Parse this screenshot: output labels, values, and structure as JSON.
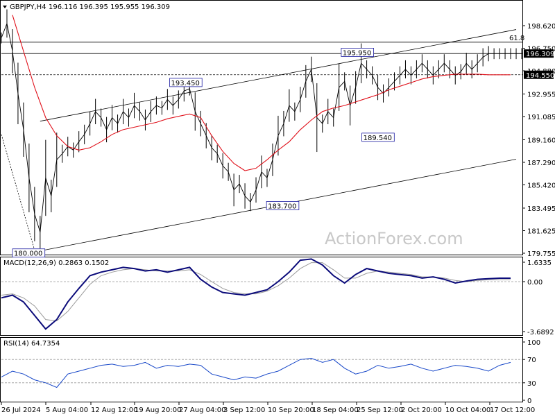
{
  "header": {
    "symbol_timeframe": "GBPJPY,H4",
    "ohlc": "196.116 196.395 195.955 196.309"
  },
  "watermark": "ActionForex.com",
  "colors": {
    "candles": "#000000",
    "ma": "#e0101a",
    "macd": "#0b0b7a",
    "signal": "#9a9a9a",
    "rsi": "#1646c8",
    "channel": "#000000",
    "price_label_bg": "#000000"
  },
  "chart_data": [
    {
      "type": "line",
      "panel": "price",
      "y_axis_ticks": [
        "198.620",
        "196.750",
        "194.880",
        "192.955",
        "191.085",
        "189.160",
        "187.290",
        "185.420",
        "183.495",
        "181.625",
        "179.755"
      ],
      "ylim": [
        179.755,
        200.0
      ],
      "x_axis_ticks": [
        "26 Jul 2024",
        "5 Aug 04:00",
        "12 Aug 12:00",
        "19 Aug 20:00",
        "27 Aug 04:00",
        "3 Sep 12:00",
        "10 Sep 20:00",
        "18 Sep 04:00",
        "25 Sep 12:00",
        "2 Oct 20:00",
        "10 Oct 04:00",
        "17 Oct 12:00"
      ],
      "key_points": [
        {
          "label": "180.000",
          "x": 3,
          "y": 180.0
        },
        {
          "label": "193.450",
          "x": 18,
          "y": 193.45
        },
        {
          "label": "183.700",
          "x": 27,
          "y": 183.7
        },
        {
          "label": "195.950",
          "x": 33.5,
          "y": 195.95
        },
        {
          "label": "189.540",
          "x": 33.9,
          "y": 189.54
        }
      ],
      "levels": [
        {
          "label": "61.8",
          "y": 197.25,
          "style": "solid"
        },
        {
          "label": "196.309",
          "y": 196.309,
          "style": "solid",
          "highlight": true
        },
        {
          "label": "194.550",
          "y": 194.55,
          "style": "dashed",
          "highlight": true
        }
      ],
      "channel": {
        "upper": [
          [
            3.5,
            190.7
          ],
          [
            46.5,
            198.3
          ]
        ],
        "lower": [
          [
            3.8,
            180.0
          ],
          [
            46.5,
            187.55
          ]
        ],
        "dotted": [
          [
            0,
            189.6
          ],
          [
            3,
            180.0
          ]
        ]
      },
      "series": [
        {
          "role": "price",
          "x": [
            0,
            0.5,
            1,
            1.5,
            2,
            2.5,
            3,
            3.5,
            4,
            4.5,
            5,
            5.5,
            6,
            6.5,
            7,
            7.5,
            8,
            8.5,
            9,
            9.5,
            10,
            10.5,
            11,
            11.5,
            12,
            12.5,
            13,
            13.5,
            14,
            14.5,
            15,
            15.5,
            16,
            16.5,
            17,
            17.5,
            18,
            18.5,
            19,
            19.5,
            20,
            20.5,
            21,
            21.5,
            22,
            22.5,
            23,
            23.5,
            24,
            24.5,
            25,
            25.5,
            26,
            26.5,
            27,
            27.5,
            28,
            28.5,
            29,
            29.5,
            30,
            30.5,
            31,
            31.5,
            32,
            32.5,
            33,
            33.5,
            34,
            34.5,
            35,
            35.5,
            36,
            36.5,
            37,
            37.5,
            38,
            38.5,
            39,
            39.5,
            40,
            40.5,
            41,
            41.5,
            42,
            42.5,
            43,
            43.5,
            44,
            44.5,
            45,
            45.5,
            46,
            46.5,
            47
          ],
          "values": [
            197.6,
            198.8,
            196.5,
            193.0,
            190.0,
            186.0,
            183.0,
            181.5,
            186.0,
            184.5,
            187.5,
            188.0,
            188.6,
            188.3,
            189.0,
            189.6,
            190.5,
            191.5,
            191.0,
            190.0,
            191.0,
            190.5,
            191.5,
            191.0,
            192.0,
            191.5,
            190.8,
            191.5,
            192.0,
            191.8,
            192.5,
            192.0,
            192.5,
            193.2,
            193.4,
            191.5,
            190.5,
            189.5,
            188.5,
            188.0,
            187.0,
            186.5,
            185.0,
            185.5,
            184.5,
            184.0,
            185.0,
            186.5,
            186.0,
            187.5,
            189.5,
            190.5,
            192.0,
            191.5,
            192.5,
            194.0,
            195.0,
            191.0,
            190.5,
            191.5,
            191.0,
            193.5,
            194.0,
            192.0,
            193.5,
            195.5,
            195.0,
            194.5,
            193.5,
            193.0,
            193.5,
            194.0,
            194.5,
            195.0,
            194.5,
            195.0,
            195.5,
            195.0,
            194.5,
            195.0,
            195.5,
            195.0,
            194.5,
            194.8,
            195.5,
            195.0,
            195.5,
            196.0,
            196.3,
            196.3,
            196.3,
            196.3,
            196.3,
            196.3,
            196.3
          ]
        },
        {
          "role": "moving-average",
          "x": [
            1,
            2,
            3,
            4,
            5,
            6,
            7,
            8,
            9,
            10,
            11,
            12,
            13,
            14,
            15,
            16,
            17,
            18,
            19,
            20,
            21,
            22,
            23,
            24,
            25,
            26,
            27,
            28,
            29,
            30,
            31,
            32,
            33,
            34,
            35,
            36,
            37,
            38,
            39,
            40,
            41,
            42,
            43,
            44,
            45,
            46
          ],
          "values": [
            199.5,
            196.5,
            193.5,
            191.0,
            189.5,
            188.6,
            188.3,
            188.5,
            189.0,
            189.6,
            190.0,
            190.2,
            190.4,
            190.6,
            190.9,
            191.1,
            191.3,
            191.0,
            189.5,
            188.2,
            187.2,
            186.6,
            186.8,
            187.5,
            188.3,
            189.0,
            190.0,
            190.8,
            191.5,
            191.8,
            192.0,
            192.3,
            192.6,
            192.9,
            193.3,
            193.6,
            193.9,
            194.2,
            194.4,
            194.5,
            194.6,
            194.6,
            194.6,
            194.55,
            194.55,
            194.55
          ]
        }
      ]
    },
    {
      "type": "line",
      "panel": "macd",
      "title": "MACD(12,26,9) 0.2863 0.1502",
      "y_axis_ticks": [
        "1.6335",
        "0.00",
        "-3.6892"
      ],
      "ylim": [
        -4.2,
        2.2
      ],
      "x": [
        0,
        1,
        2,
        3,
        4,
        5,
        6,
        7,
        8,
        9,
        10,
        11,
        12,
        13,
        14,
        15,
        16,
        17,
        18,
        19,
        20,
        21,
        22,
        23,
        24,
        25,
        26,
        27,
        28,
        29,
        30,
        31,
        32,
        33,
        34,
        35,
        36,
        37,
        38,
        39,
        40,
        41,
        42,
        43,
        44,
        45,
        46
      ],
      "series": [
        {
          "role": "macd",
          "values": [
            -1.2,
            -1.0,
            -1.5,
            -2.5,
            -3.5,
            -2.8,
            -1.5,
            -0.5,
            0.5,
            0.8,
            1.0,
            1.2,
            1.1,
            0.9,
            1.0,
            0.8,
            1.0,
            1.2,
            0.2,
            -0.4,
            -0.8,
            -0.9,
            -1.0,
            -0.8,
            -0.6,
            0.0,
            0.8,
            1.8,
            1.9,
            1.4,
            0.5,
            -0.1,
            0.6,
            1.1,
            0.9,
            0.7,
            0.6,
            0.5,
            0.3,
            0.4,
            0.2,
            -0.1,
            0.05,
            0.2,
            0.25,
            0.29,
            0.29
          ]
        },
        {
          "role": "signal",
          "values": [
            -1.0,
            -0.9,
            -1.2,
            -1.8,
            -2.8,
            -2.9,
            -2.2,
            -1.2,
            -0.2,
            0.5,
            0.8,
            1.0,
            1.1,
            1.0,
            0.9,
            0.9,
            0.9,
            1.0,
            0.6,
            0.0,
            -0.5,
            -0.8,
            -0.9,
            -0.9,
            -0.7,
            -0.3,
            0.3,
            1.1,
            1.6,
            1.6,
            1.0,
            0.3,
            0.3,
            0.7,
            0.9,
            0.8,
            0.7,
            0.6,
            0.4,
            0.4,
            0.3,
            0.1,
            0.0,
            0.1,
            0.15,
            0.15,
            0.15
          ]
        }
      ]
    },
    {
      "type": "line",
      "panel": "rsi",
      "title": "RSI(14) 64.7354",
      "y_axis_ticks": [
        "100",
        "70",
        "30",
        "0"
      ],
      "ylim": [
        0,
        100
      ],
      "levels": [
        70,
        30
      ],
      "x": [
        0,
        1,
        2,
        3,
        4,
        5,
        6,
        7,
        8,
        9,
        10,
        11,
        12,
        13,
        14,
        15,
        16,
        17,
        18,
        19,
        20,
        21,
        22,
        23,
        24,
        25,
        26,
        27,
        28,
        29,
        30,
        31,
        32,
        33,
        34,
        35,
        36,
        37,
        38,
        39,
        40,
        41,
        42,
        43,
        44,
        45,
        46
      ],
      "series": [
        {
          "role": "rsi",
          "values": [
            40,
            50,
            45,
            35,
            30,
            22,
            45,
            50,
            55,
            60,
            62,
            58,
            60,
            65,
            55,
            60,
            58,
            62,
            60,
            45,
            40,
            35,
            40,
            38,
            45,
            50,
            60,
            70,
            72,
            65,
            70,
            55,
            45,
            50,
            60,
            55,
            58,
            62,
            55,
            50,
            55,
            60,
            58,
            55,
            50,
            60,
            65
          ]
        }
      ]
    }
  ]
}
